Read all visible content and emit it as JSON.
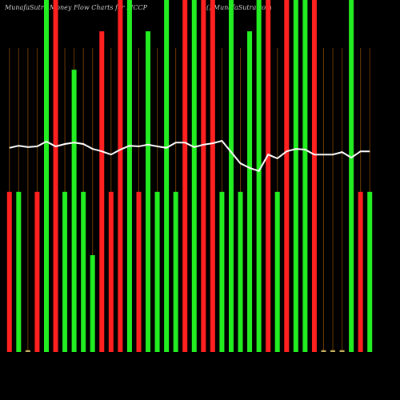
{
  "chart_data": {
    "type": "bar",
    "title": "MunafaSutra  Money Flow  Charts for MCCP",
    "subtitle": "() MunafaSutra.com",
    "categories": [
      null,
      null,
      null,
      null,
      null,
      null,
      null,
      null,
      null,
      null,
      null,
      null,
      null,
      null,
      null,
      null,
      null,
      null,
      null,
      null,
      null,
      null,
      null,
      null,
      null,
      null,
      null,
      null,
      null,
      null,
      null,
      null,
      null,
      null,
      null,
      null,
      null,
      null,
      null,
      null
    ],
    "values": [
      45.5,
      45.5,
      0.5,
      45.5,
      100,
      100,
      45.5,
      80.2,
      45.5,
      27.5,
      91.1,
      45.5,
      100,
      100,
      45.5,
      91.1,
      45.5,
      100,
      45.5,
      100,
      100,
      100,
      100,
      45.5,
      100,
      45.5,
      91.1,
      100,
      100,
      45.5,
      100,
      100,
      100,
      100,
      0.5,
      0.5,
      0.5,
      100,
      45.5,
      45.5
    ],
    "colors": [
      "#ff2020",
      "#22ee22",
      "#c8b060",
      "#ff2020",
      "#22ee22",
      "#ff2020",
      "#22ee22",
      "#22ee22",
      "#22ee22",
      "#22ee22",
      "#ff2020",
      "#ff2020",
      "#ff2020",
      "#22ee22",
      "#ff2020",
      "#22ee22",
      "#22ee22",
      "#22ee22",
      "#22ee22",
      "#ff2020",
      "#22ee22",
      "#ff2020",
      "#ff2020",
      "#22ee22",
      "#22ee22",
      "#22ee22",
      "#22ee22",
      "#22ee22",
      "#ff2020",
      "#22ee22",
      "#ff2020",
      "#22ee22",
      "#22ee22",
      "#ff2020",
      "#c8b060",
      "#c8b060",
      "#c8b060",
      "#22ee22",
      "#ff2020",
      "#22ee22"
    ],
    "line": {
      "color": "#ffffff",
      "values": [
        58.0,
        58.6,
        58.2,
        58.4,
        59.8,
        58.4,
        59.1,
        59.5,
        59.1,
        57.7,
        57.0,
        56.1,
        57.5,
        58.6,
        58.4,
        58.9,
        58.4,
        58.0,
        59.5,
        59.5,
        58.2,
        58.9,
        59.3,
        60.0,
        56.8,
        53.6,
        52.3,
        51.4,
        56.1,
        55.0,
        57.0,
        57.7,
        57.5,
        56.1,
        56.1,
        56.1,
        56.8,
        55.2,
        57.0,
        57.0
      ]
    },
    "ylim": [
      0,
      100
    ],
    "grid_color": "#6b3a00"
  }
}
